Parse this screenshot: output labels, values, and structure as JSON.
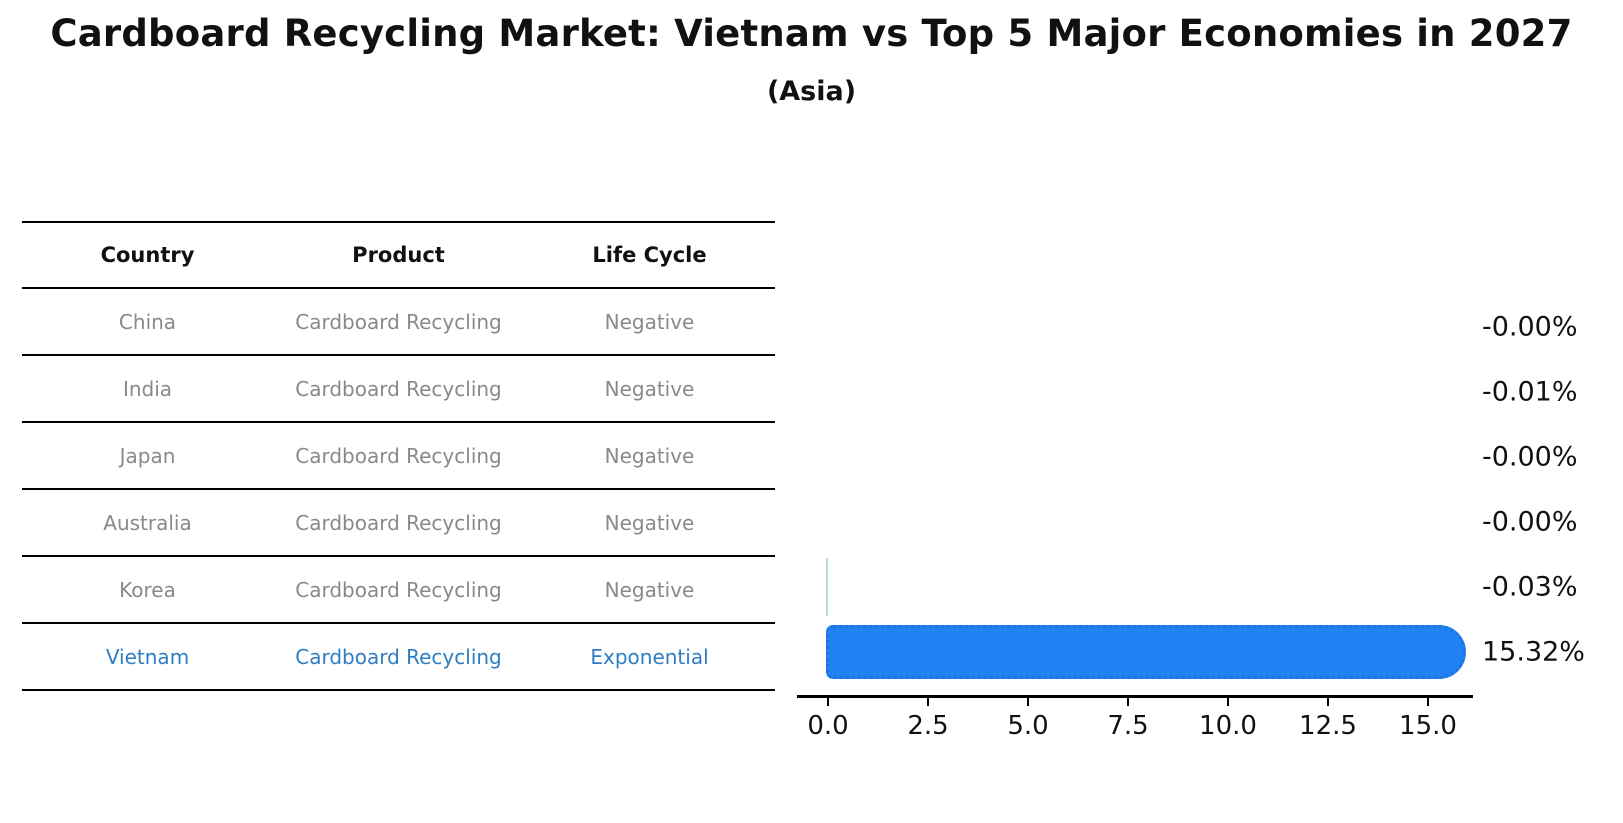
{
  "title": "Cardboard Recycling Market: Vietnam vs Top 5 Major Economies in 2027",
  "subtitle": "(Asia)",
  "table": {
    "headers": [
      "Country",
      "Product",
      "Life Cycle"
    ],
    "rows": [
      {
        "country": "China",
        "product": "Cardboard Recycling",
        "life_cycle": "Negative",
        "value_label": "-0.00%",
        "highlight": false
      },
      {
        "country": "India",
        "product": "Cardboard Recycling",
        "life_cycle": "Negative",
        "value_label": "-0.01%",
        "highlight": false
      },
      {
        "country": "Japan",
        "product": "Cardboard Recycling",
        "life_cycle": "Negative",
        "value_label": "-0.00%",
        "highlight": false
      },
      {
        "country": "Australia",
        "product": "Cardboard Recycling",
        "life_cycle": "Negative",
        "value_label": "-0.00%",
        "highlight": false
      },
      {
        "country": "Korea",
        "product": "Cardboard Recycling",
        "life_cycle": "Negative",
        "value_label": "-0.03%",
        "highlight": false
      },
      {
        "country": "Vietnam",
        "product": "Cardboard Recycling",
        "life_cycle": "Exponential",
        "value_label": "15.32%",
        "highlight": true
      }
    ]
  },
  "chart_data": {
    "type": "bar",
    "orientation": "horizontal",
    "title": "Cardboard Recycling Market: Vietnam vs Top 5 Major Economies in 2027 (Asia)",
    "categories": [
      "China",
      "India",
      "Japan",
      "Australia",
      "Korea",
      "Vietnam"
    ],
    "values": [
      -0.0,
      -0.01,
      -0.0,
      -0.0,
      -0.03,
      15.32
    ],
    "value_labels": [
      "-0.00%",
      "-0.01%",
      "-0.00%",
      "-0.00%",
      "-0.03%",
      "15.32%"
    ],
    "unit": "%",
    "xlabel": "",
    "ylabel": "",
    "xlim": [
      -0.8,
      16.1
    ],
    "xticks": [
      0.0,
      2.5,
      5.0,
      7.5,
      10.0,
      12.5,
      15.0
    ],
    "xtick_labels": [
      "0.0",
      "2.5",
      "5.0",
      "7.5",
      "10.0",
      "12.5",
      "15.0"
    ],
    "grid": false,
    "legend": false,
    "bar_color": "#2182f3",
    "bar_border_color": "#1b76e0",
    "tiny_bar_color": "#b9dcd6",
    "highlight_text_color": "#2e7dc3",
    "row_text_color": "#898989"
  }
}
